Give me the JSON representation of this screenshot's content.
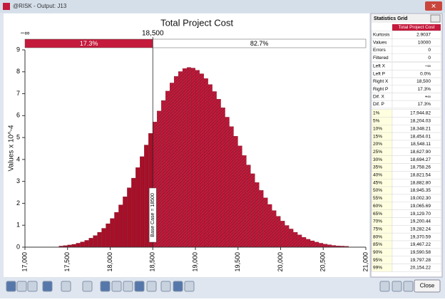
{
  "window": {
    "title": "@RISK - Output: J13"
  },
  "chart_data": {
    "type": "histogram",
    "title": "Total Project Cost",
    "y_label": "Values x 10^-4",
    "bins": [
      17400,
      17450,
      17500,
      17550,
      17600,
      17650,
      17700,
      17750,
      17800,
      17850,
      17900,
      17950,
      18000,
      18050,
      18100,
      18150,
      18200,
      18250,
      18300,
      18350,
      18400,
      18450,
      18500,
      18550,
      18600,
      18650,
      18700,
      18750,
      18800,
      18850,
      18900,
      18950,
      19000,
      19050,
      19100,
      19150,
      19200,
      19250,
      19300,
      19350,
      19400,
      19450,
      19500,
      19550,
      19600,
      19650,
      19700,
      19750,
      19800,
      19850,
      19900,
      19950,
      20000,
      20050,
      20100,
      20150,
      20200,
      20250,
      20300,
      20350,
      20400,
      20450,
      20500,
      20550,
      20600,
      20650,
      20700,
      20750,
      20800
    ],
    "values": [
      0.05,
      0.07,
      0.1,
      0.13,
      0.18,
      0.24,
      0.31,
      0.41,
      0.53,
      0.68,
      0.86,
      1.07,
      1.31,
      1.59,
      1.93,
      2.3,
      2.71,
      3.15,
      3.63,
      4.13,
      4.66,
      5.19,
      5.71,
      6.21,
      6.69,
      7.12,
      7.49,
      7.79,
      8.01,
      8.15,
      8.2,
      8.17,
      8.07,
      7.91,
      7.69,
      7.42,
      7.1,
      6.75,
      6.36,
      5.93,
      5.5,
      5.06,
      4.62,
      4.18,
      3.75,
      3.35,
      2.95,
      2.59,
      2.25,
      1.95,
      1.67,
      1.41,
      1.19,
      0.99,
      0.83,
      0.68,
      0.56,
      0.45,
      0.36,
      0.29,
      0.23,
      0.18,
      0.14,
      0.11,
      0.08,
      0.06,
      0.05,
      0.04
    ],
    "color": "#c41a3c",
    "color_left": "#a80f28",
    "xlim": [
      17000,
      21000
    ],
    "xticks": [
      {
        "value": 17000,
        "label": "17,000"
      },
      {
        "value": 17500,
        "label": "17,500"
      },
      {
        "value": 18000,
        "label": "18,000"
      },
      {
        "value": 18500,
        "label": "18,500"
      },
      {
        "value": 19000,
        "label": "19,000"
      },
      {
        "value": 19500,
        "label": "19,500"
      },
      {
        "value": 20000,
        "label": "20,000"
      },
      {
        "value": 20500,
        "label": "20,500"
      },
      {
        "value": 21000,
        "label": "21,000"
      }
    ],
    "ylim": [
      0,
      9
    ],
    "yticks": [
      0,
      1,
      2,
      3,
      4,
      5,
      6,
      7,
      8,
      9
    ],
    "delimiter": {
      "left_label": "−∞",
      "x": {
        "value": 18500,
        "label": "18,500"
      },
      "left_percent": "17.3%",
      "right_percent": "82.7%"
    },
    "annotation": "Base Case = 18500"
  },
  "stats_grid": {
    "title": "Statistics Grid",
    "column": "Total Project Cost",
    "rows": [
      [
        "Kurtosis",
        "2.9037"
      ],
      [
        "Values",
        "10000"
      ],
      [
        "Errors",
        "0"
      ],
      [
        "Filtered",
        "0"
      ],
      [
        "Left X",
        "−∞"
      ],
      [
        "Left P",
        "0.0%"
      ],
      [
        "Right X",
        "18,500"
      ],
      [
        "Right P",
        "17.3%"
      ],
      [
        "Dif. X",
        "+∞"
      ],
      [
        "Dif. P",
        "17.3%"
      ],
      [
        "1%",
        "17,944.82"
      ],
      [
        "5%",
        "18,204.03"
      ],
      [
        "10%",
        "18,348.21"
      ],
      [
        "15%",
        "18,454.01"
      ],
      [
        "20%",
        "18,548.11"
      ],
      [
        "25%",
        "18,627.90"
      ],
      [
        "30%",
        "18,694.27"
      ],
      [
        "35%",
        "18,758.26"
      ],
      [
        "40%",
        "18,821.54"
      ],
      [
        "45%",
        "18,882.80"
      ],
      [
        "50%",
        "18,945.35"
      ],
      [
        "55%",
        "19,002.30"
      ],
      [
        "60%",
        "19,065.69"
      ],
      [
        "65%",
        "19,129.70"
      ],
      [
        "70%",
        "19,200.44"
      ],
      [
        "75%",
        "19,282.24"
      ],
      [
        "80%",
        "19,370.59"
      ],
      [
        "85%",
        "19,467.22"
      ],
      [
        "90%",
        "19,590.58"
      ],
      [
        "95%",
        "19,797.28"
      ],
      [
        "99%",
        "20,154.22"
      ]
    ]
  },
  "buttons": {
    "close": "Close"
  }
}
